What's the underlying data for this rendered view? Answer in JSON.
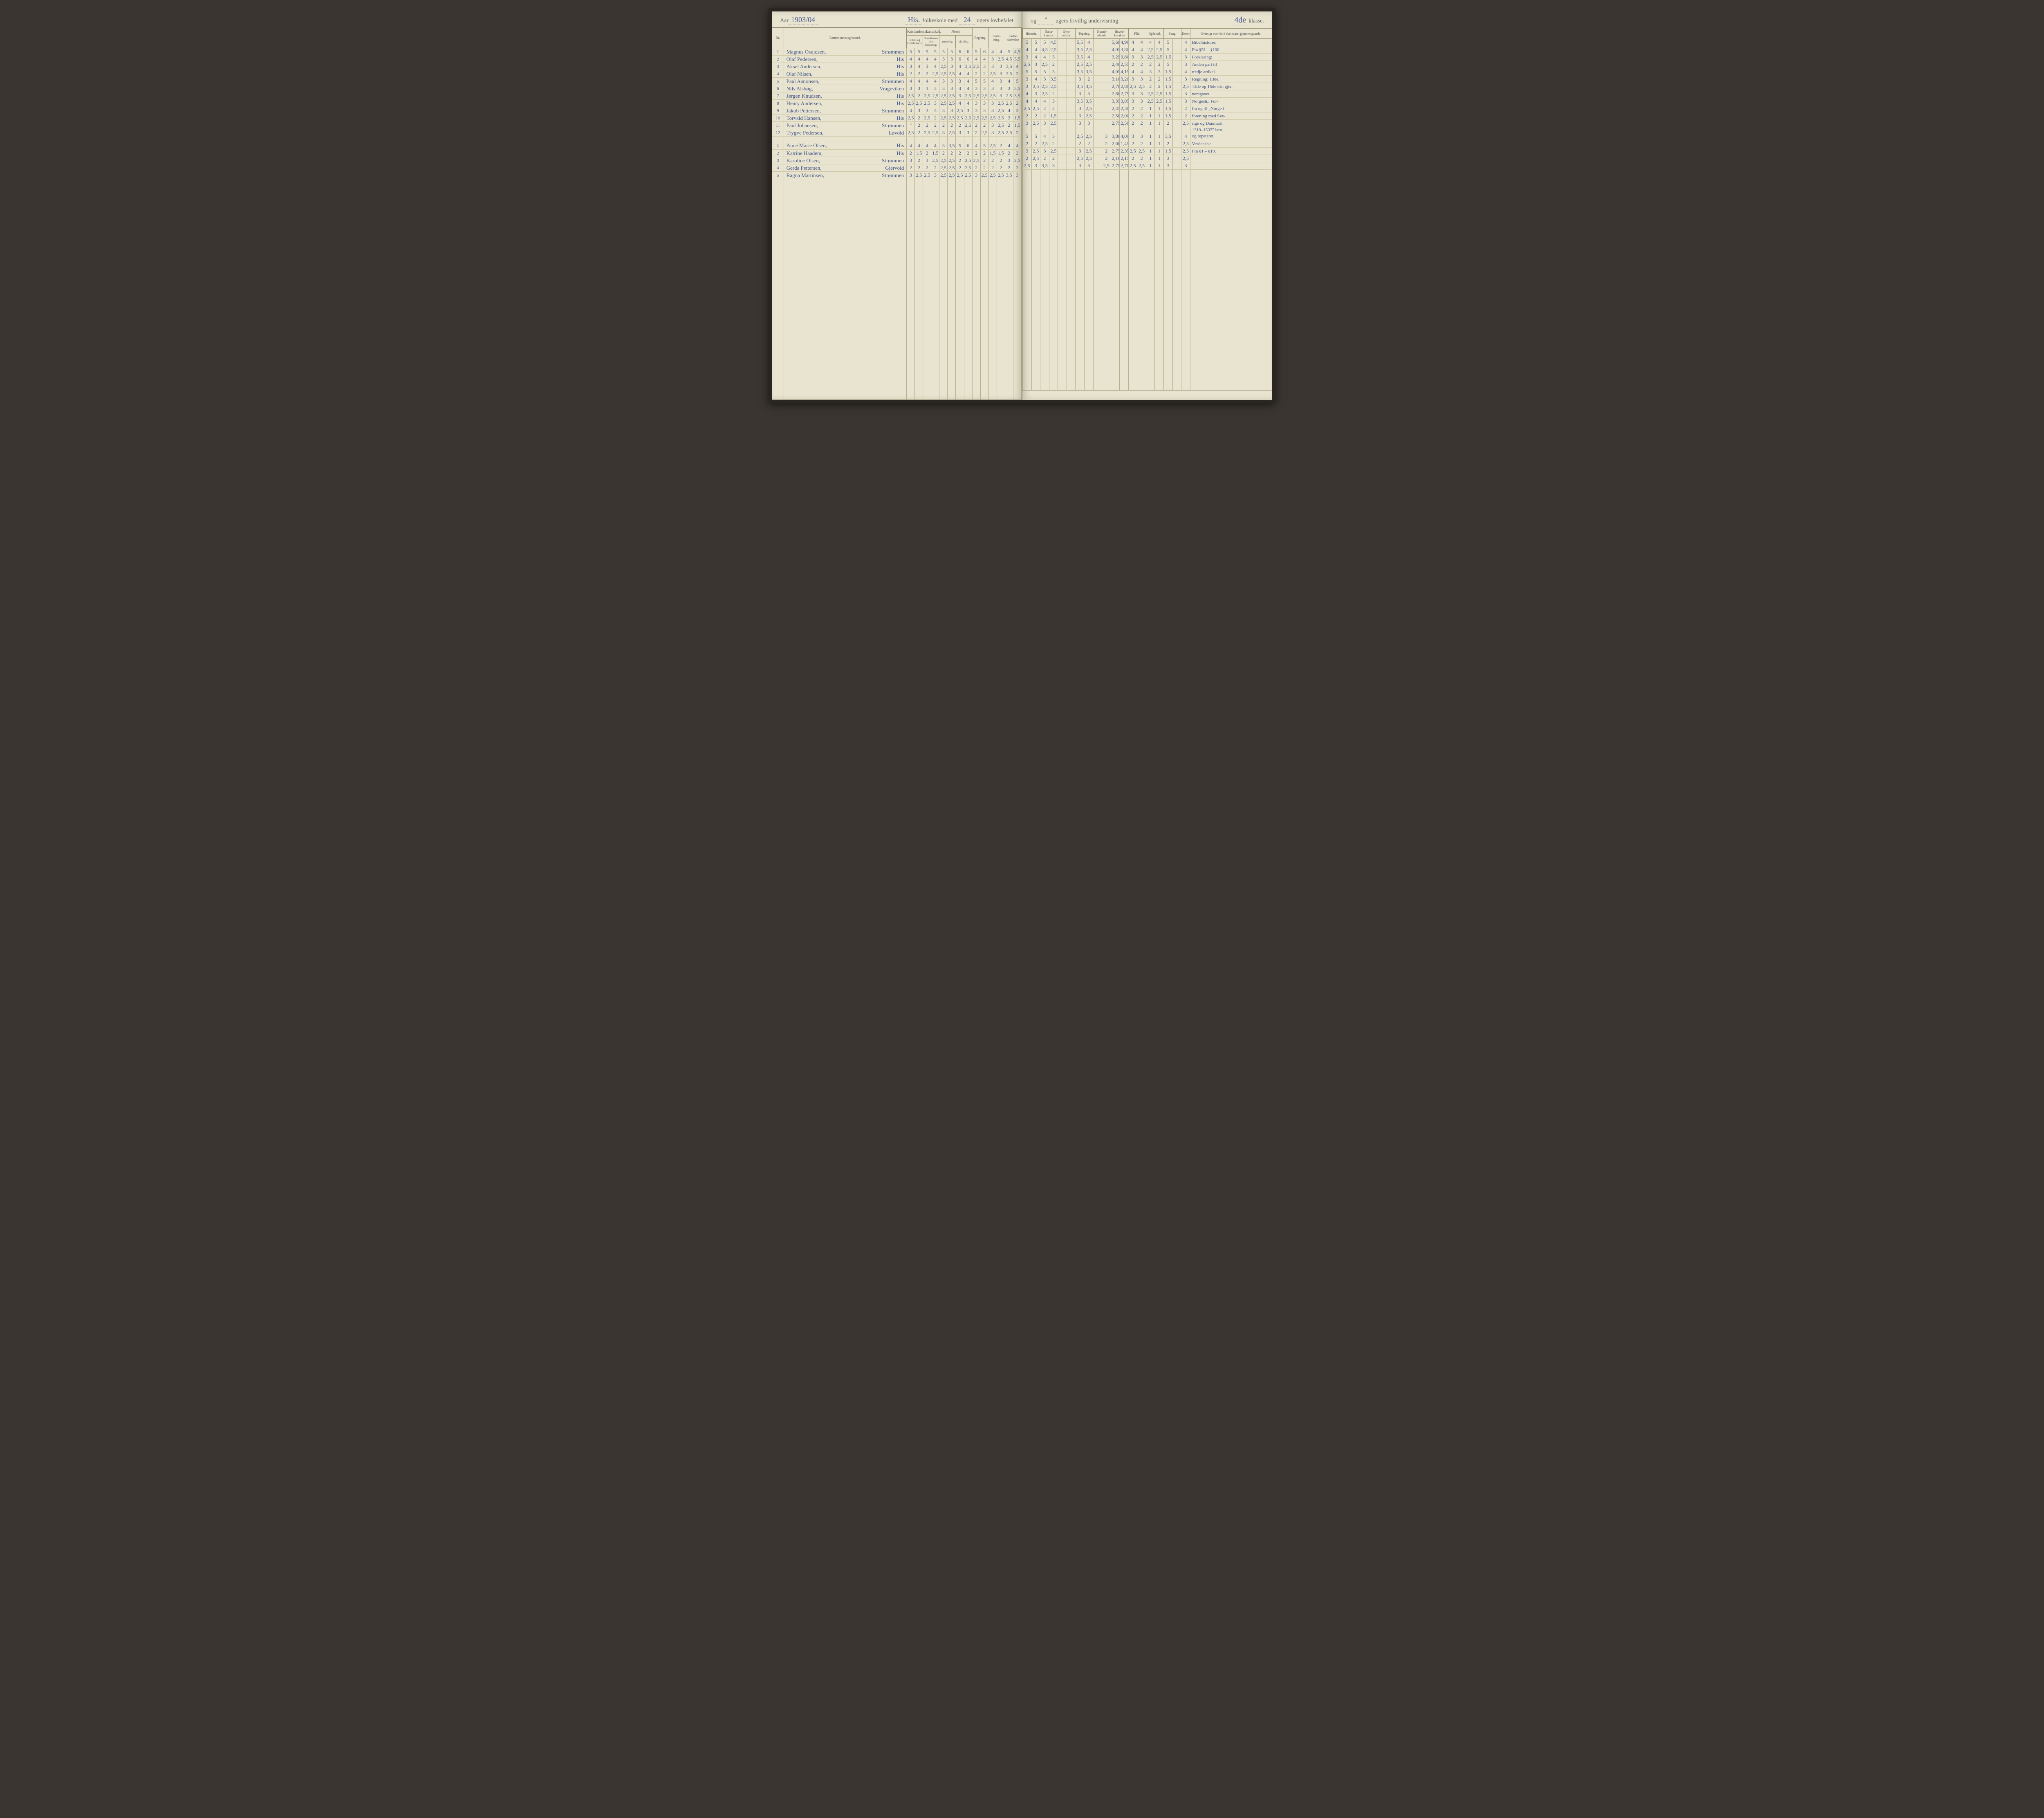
{
  "header": {
    "aar_label": "Aar",
    "aar_value": "1903/04",
    "school_name": "His.",
    "text1": "folkeskole med",
    "weeks_compulsory": "24",
    "text2": "ugers lovbefalet",
    "text3": "og",
    "weeks_optional": "\"",
    "text4": "ugers frivillig undervisning.",
    "klasse_value": "4de",
    "klasse_label": "klasse."
  },
  "cols_left": {
    "nr": "Nr.",
    "name": "Barnets navn og bosted.",
    "kristendom": "Kristendomskundskab.",
    "bibel": "Bibel- og kirkehistorie.",
    "katek": "Katekismen eller forklaring.",
    "norsk": "Norsk",
    "mundt": "mundtlig.",
    "skrift": "skriftlig.",
    "regning": "Regning.",
    "skrivning": "Skriv-\nning.",
    "jord": "Jordbe-\nskrivelse"
  },
  "cols_right": {
    "historie": "Historie.",
    "natur": "Natur-\nkundsk.",
    "gym": "Gym-\nnastik.",
    "tegning": "Tegning.",
    "haand": "Haand-\narbeide.",
    "hoved": "Hoved-\nkarakter",
    "flid": "Flid.",
    "opforsel": "Opførsel.",
    "sang": "Sang.",
    "evner": "Evner.",
    "oversigt": "Oversigt over det i\nskoleaaret gjennemgaaede."
  },
  "rows_boys": [
    {
      "nr": "1",
      "name": "Magnus Osuldsen,",
      "place": "Strømmen",
      "l": [
        "5",
        "5",
        "5",
        "5",
        "5",
        "5",
        "6",
        "6",
        "5",
        "6",
        "4",
        "4",
        "5",
        "4,5"
      ],
      "r": [
        "5",
        "5",
        "5",
        "4,5",
        "",
        "",
        "5,5",
        "4",
        "",
        "",
        "5,60",
        "4,90",
        "4",
        "4",
        "4",
        "4",
        "5",
        "",
        "4",
        ""
      ]
    },
    {
      "nr": "2",
      "name": "Olaf Pedersen,",
      "place": "His",
      "l": [
        "4",
        "4",
        "4",
        "4",
        "3",
        "3",
        "6",
        "6",
        "4",
        "4",
        "3",
        "2,5",
        "4,5",
        "3,5"
      ],
      "r": [
        "4",
        "4",
        "4,5",
        "2,5",
        "",
        "",
        "3,5",
        "2,5",
        "",
        "",
        "4,05",
        "3,80",
        "4",
        "4",
        "2,5",
        "2,5",
        "5",
        "",
        "4",
        ""
      ]
    },
    {
      "nr": "3",
      "name": "Aksel Andersen,",
      "place": "His",
      "l": [
        "3",
        "4",
        "3",
        "4",
        "2,5",
        "3",
        "4",
        "3,5",
        "2,5",
        "3",
        "3",
        "3",
        "3,5",
        "4"
      ],
      "r": [
        "3",
        "4",
        "4",
        "5",
        "",
        "",
        "3,5",
        "4",
        "",
        "",
        "3,25",
        "3,80",
        "3",
        "3",
        "2,5",
        "2,5",
        "1,5",
        "",
        "3",
        ""
      ]
    },
    {
      "nr": "4",
      "name": "Olaf Nilsen,",
      "place": "His",
      "l": [
        "2",
        "2",
        "2",
        "2,5",
        "2,5",
        "2,5",
        "4",
        "4",
        "2",
        "2",
        "2,5",
        "3",
        "2,5",
        "2"
      ],
      "r": [
        "2,5",
        "3",
        "2,5",
        "2",
        "",
        "",
        "2,5",
        "2,5",
        "",
        "",
        "2,40",
        "2,55",
        "2",
        "2",
        "2",
        "2",
        "5",
        "",
        "3",
        ""
      ]
    },
    {
      "nr": "5",
      "name": "Paul Aanonsen,",
      "place": "Strømmen",
      "l": [
        "4",
        "4",
        "4",
        "4",
        "3",
        "3",
        "3",
        "4",
        "5",
        "5",
        "4",
        "3",
        "4",
        "5"
      ],
      "r": [
        "5",
        "5",
        "5",
        "5",
        "",
        "",
        "3,5",
        "3,5",
        "",
        "",
        "4,05",
        "4,15",
        "4",
        "4",
        "3",
        "3",
        "1,5",
        "",
        "4",
        ""
      ]
    },
    {
      "nr": "6",
      "name": "Nils Alsbøg,",
      "place": "Vrageviken",
      "l": [
        "3",
        "3",
        "3",
        "3",
        "3",
        "3",
        "4",
        "4",
        "3",
        "3",
        "3",
        "3",
        "3",
        "3,5"
      ],
      "r": [
        "3",
        "4",
        "3",
        "3,5",
        "",
        "",
        "3",
        "2",
        "",
        "",
        "3,10",
        "3,20",
        "3",
        "3",
        "2",
        "2",
        "1,5",
        "",
        "3",
        ""
      ]
    },
    {
      "nr": "7",
      "name": "Jørgen Knudsen,",
      "place": "His",
      "l": [
        "2,5",
        "2",
        "2,5",
        "2,5",
        "2,5",
        "2,5",
        "3",
        "2,5",
        "2,5",
        "2,5",
        "2,5",
        "3",
        "2,5",
        "3,5"
      ],
      "r": [
        "3",
        "3,5",
        "2,5",
        "2,5",
        "",
        "",
        "3,5",
        "3,5",
        "",
        "",
        "2,70",
        "2,80",
        "2,5",
        "2,5",
        "2",
        "2",
        "1,5",
        "",
        "2,5",
        ""
      ]
    },
    {
      "nr": "8",
      "name": "Henry Andersen,",
      "place": "His",
      "l": [
        "2,5",
        "2,5",
        "2,5",
        "3",
        "2,5",
        "2,5",
        "4",
        "4",
        "3",
        "3",
        "3",
        "2,5",
        "2,5",
        "2"
      ],
      "r": [
        "4",
        "3",
        "2,5",
        "2",
        "",
        "",
        "3",
        "3",
        "",
        "",
        "2,80",
        "2,75",
        "3",
        "3",
        "2,5",
        "2,5",
        "1,5",
        "",
        "3",
        ""
      ]
    },
    {
      "nr": "9",
      "name": "Jakob Pettersen,",
      "place": "Strømmen",
      "l": [
        "4",
        "3",
        "3",
        "3",
        "3",
        "3",
        "2,5",
        "3",
        "3",
        "3",
        "3",
        "2,5",
        "4",
        "3"
      ],
      "r": [
        "4",
        "4",
        "4",
        "3",
        "",
        "",
        "3,5",
        "3,5",
        "",
        "",
        "3,35",
        "3,05",
        "3",
        "3",
        "2,5",
        "2,5",
        "1,5",
        "",
        "3",
        ""
      ]
    },
    {
      "nr": "10",
      "name": "Torvald Hansen,",
      "place": "His",
      "l": [
        "2,5",
        "2",
        "2,5",
        "2",
        "2,5",
        "2,5",
        "2,5",
        "2,5",
        "2,5",
        "2,5",
        "2,5",
        "2,5",
        "2",
        "1,5"
      ],
      "r": [
        "2,5",
        "2,5",
        "2",
        "2",
        "",
        "",
        "3",
        "2,5",
        "",
        "",
        "2,45",
        "2,30",
        "2",
        "2",
        "1",
        "1",
        "1,5",
        "",
        "2",
        ""
      ]
    },
    {
      "nr": "11",
      "name": "Paul Johansen,",
      "place": "Strømmen",
      "l": [
        "\"",
        "2",
        "2",
        "2",
        "2",
        "2",
        "2",
        "2,5",
        "2",
        "2",
        "3",
        "2,5",
        "2",
        "1,5"
      ],
      "r": [
        "2",
        "2",
        "2",
        "1,5",
        "",
        "",
        "3",
        "2,5",
        "",
        "",
        "2,50",
        "2,00",
        "2",
        "2",
        "1",
        "1",
        "1,5",
        "",
        "2",
        ""
      ]
    },
    {
      "nr": "12",
      "name": "Trygve Pedersen,",
      "place": "Løvold",
      "l": [
        "2,5",
        "2",
        "2,5",
        "2,5",
        "3",
        "2,5",
        "3",
        "3",
        "2",
        "2,5",
        "3",
        "2,5",
        "2,5",
        "2"
      ],
      "r": [
        "3",
        "2,5",
        "3",
        "2,5",
        "",
        "",
        "3",
        "3",
        "",
        "",
        "2,75",
        "2,50",
        "2",
        "2",
        "1",
        "1",
        "2",
        "",
        "2,5",
        ""
      ]
    }
  ],
  "rows_girls": [
    {
      "nr": "1",
      "name": "Anne Marie Olsen,",
      "place": "His",
      "l": [
        "4",
        "4",
        "4",
        "4",
        "3",
        "3,5",
        "5",
        "6",
        "4",
        "5",
        "2,5",
        "2",
        "4",
        "4"
      ],
      "r": [
        "5",
        "5",
        "4",
        "5",
        "",
        "",
        "2,5",
        "2,5",
        "",
        "3",
        "3,80",
        "4,00",
        "3",
        "3",
        "1",
        "1",
        "3,5",
        "",
        "4",
        ""
      ]
    },
    {
      "nr": "2",
      "name": "Katrine Haadem,",
      "place": "His",
      "l": [
        "2",
        "1,5",
        "2",
        "1,5",
        "2",
        "2",
        "2",
        "2",
        "2",
        "2",
        "1,5",
        "1,5",
        "2",
        "2"
      ],
      "r": [
        "2",
        "2",
        "2,5",
        "2",
        "",
        "",
        "2",
        "2",
        "",
        "2",
        "2,00",
        "1,45",
        "2",
        "2",
        "1",
        "1",
        "2",
        "",
        "2,5",
        ""
      ]
    },
    {
      "nr": "3",
      "name": "Karoline Olsen,",
      "place": "Strømmen",
      "l": [
        "3",
        "2",
        "3",
        "2,5",
        "2,5",
        "2,5",
        "2",
        "2,5",
        "2,5",
        "2",
        "2",
        "2",
        "3",
        "2,5"
      ],
      "r": [
        "3",
        "2,5",
        "3",
        "2,5",
        "",
        "",
        "3",
        "2,5",
        "",
        "2",
        "2,75",
        "2,35",
        "2,5",
        "2,5",
        "1",
        "1",
        "1,5",
        "",
        "2,5",
        ""
      ]
    },
    {
      "nr": "4",
      "name": "Gerda Pettersen,",
      "place": "Gjervold",
      "l": [
        "2",
        "2",
        "2",
        "2",
        "2,5",
        "2,5",
        "2",
        "2,5",
        "2",
        "2",
        "2",
        "2",
        "2",
        "2"
      ],
      "r": [
        "2",
        "2,5",
        "2",
        "2",
        "",
        "",
        "2,5",
        "2,5",
        "",
        "2",
        "2,10",
        "2,15",
        "2",
        "2",
        "1",
        "1",
        "3",
        "",
        "2,5",
        ""
      ]
    },
    {
      "nr": "5",
      "name": "Ragna Martinsen,",
      "place": "Strømmen",
      "l": [
        "3",
        "2,5",
        "2,5",
        "3",
        "2,5",
        "2,5",
        "2,5",
        "2,5",
        "3",
        "2,5",
        "2,5",
        "2,5",
        "3,5",
        "3"
      ],
      "r": [
        "2,5",
        "3",
        "3,5",
        "3",
        "",
        "",
        "3",
        "3",
        "",
        "2,5",
        "2,75",
        "2,70",
        "2,5",
        "2,5",
        "1",
        "1",
        "3",
        "",
        "3",
        ""
      ]
    }
  ],
  "notes": [
    "Bibelhistorie:",
    "Fra §51 – §100.",
    "Forklaring:",
    "Anden part til",
    "tredje artikel.",
    "Regning: 13de,",
    "14de og 15de trin gjen-",
    "nemgaaet.",
    "Norgesh.: For-",
    "fra og til „Norge i",
    "forening med Sve-",
    "rige og Danmark",
    "1319–1537\" læst",
    "og repeteret.",
    "Verdensh.:",
    "Fra §1 – §19."
  ],
  "colors": {
    "paper": "#e8e4d0",
    "ink_handwriting": "#4a5a8a",
    "ink_print": "#555",
    "rule_dark": "#9a9070",
    "rule_light": "#b8b090",
    "binding": "#2a2520"
  }
}
